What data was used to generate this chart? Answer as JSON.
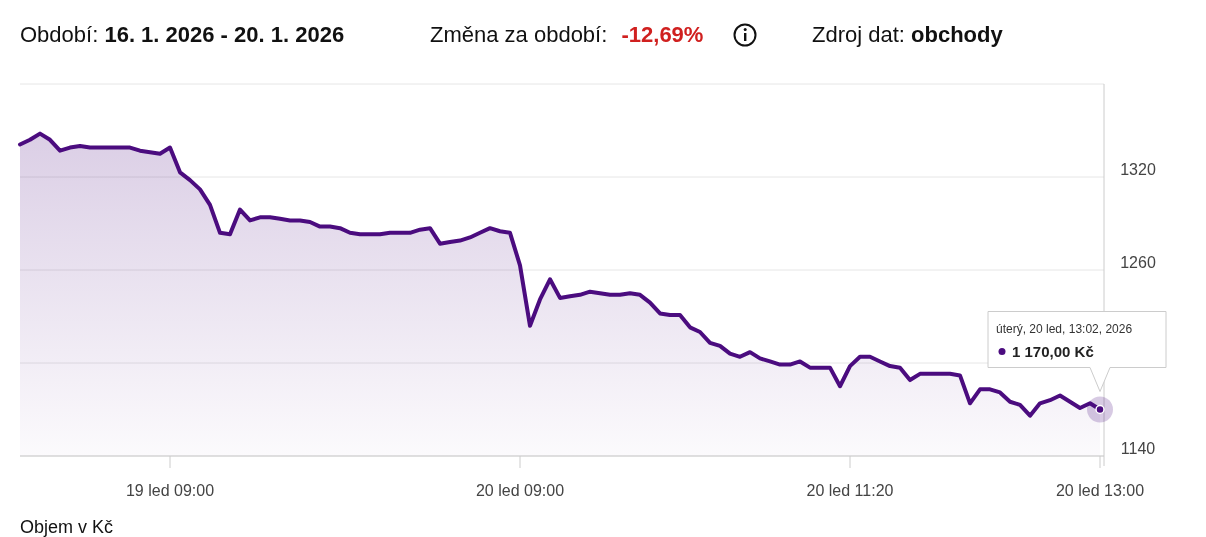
{
  "chart_data": {
    "type": "area",
    "title": "Období: 16. 1. 2026  -  20. 1. 2026",
    "subtitle": "Změna za období: -12,69%",
    "annotations": [
      "Zdroj dat: obchody",
      "úterý, 20 led, 13:02, 2026",
      "1 170,00 Kč",
      "Objem v Kč"
    ],
    "categories": [
      null,
      null,
      null,
      null,
      null,
      null,
      null,
      null,
      null,
      null,
      null,
      null,
      null,
      null,
      null,
      "19 led 09:00",
      null,
      null,
      null,
      null,
      null,
      null,
      null,
      null,
      null,
      null,
      null,
      null,
      null,
      null,
      null,
      null,
      null,
      null,
      null,
      null,
      null,
      null,
      null,
      null,
      null,
      null,
      null,
      null,
      null,
      null,
      null,
      null,
      null,
      null,
      "20 led 09:00",
      null,
      null,
      null,
      null,
      null,
      null,
      null,
      null,
      null,
      null,
      null,
      null,
      null,
      null,
      null,
      null,
      null,
      null,
      null,
      null,
      null,
      null,
      null,
      null,
      null,
      null,
      null,
      null,
      null,
      null,
      null,
      null,
      "20 led 11:20",
      null,
      null,
      null,
      null,
      null,
      null,
      null,
      null,
      null,
      null,
      null,
      null,
      null,
      null,
      null,
      null,
      null,
      null,
      null,
      null,
      null,
      null,
      null,
      null,
      "20 led 13:00"
    ],
    "series": [
      {
        "color": "#4b0c7f",
        "values": [
          1341,
          1344,
          1348,
          1344,
          1337,
          1339,
          1340,
          1339,
          1339,
          1339,
          1339,
          1339,
          1337,
          1336,
          1335,
          1339,
          1323,
          1318,
          1312,
          1302,
          1284,
          1283,
          1299,
          1292,
          1294,
          1294,
          1293,
          1292,
          1292,
          1291,
          1288,
          1288,
          1287,
          1284,
          1283,
          1283,
          1283,
          1284,
          1284,
          1284,
          1286,
          1287,
          1277,
          1278,
          1279,
          1281,
          1284,
          1287,
          1285,
          1284,
          1263,
          1224,
          1241,
          1254,
          1242,
          1243,
          1244,
          1246,
          1245,
          1244,
          1244,
          1245,
          1244,
          1239,
          1232,
          1231,
          1231,
          1223,
          1220,
          1213,
          1211,
          1206,
          1204,
          1207,
          1203,
          1201,
          1199,
          1199,
          1201,
          1197,
          1197,
          1197,
          1185,
          1198,
          1204,
          1204,
          1201,
          1198,
          1197,
          1189,
          1193,
          1193,
          1193,
          1193,
          1192,
          1174,
          1183,
          1183,
          1181,
          1175,
          1173,
          1166,
          1174,
          1176,
          1179,
          1175,
          1171,
          1174,
          1170
        ]
      }
    ],
    "ylim": [
      1140,
      1380
    ],
    "yticks": [
      1140,
      {
        "value": 1200,
        "label": null
      },
      1260,
      1320,
      {
        "value": 1380,
        "label": null
      }
    ],
    "grid": "y"
  }
}
